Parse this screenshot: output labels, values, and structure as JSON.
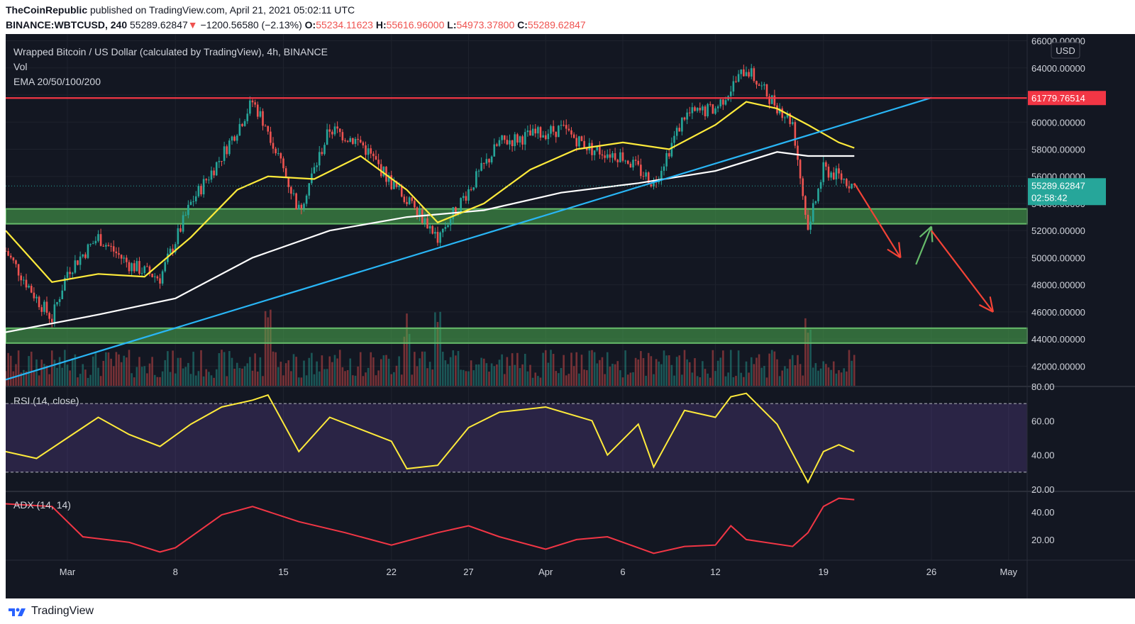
{
  "header": {
    "publisher": "TheCoinRepublic",
    "published_text": "published on TradingView.com, April 21, 2021 05:02:11 UTC",
    "symbol": "BINANCE:WBTCUSD, 240",
    "last_price": "55289.62847",
    "change_arrow": "▼",
    "change": "−1200.56580 (−2.13%)",
    "o_label": "O:",
    "o_value": "55234.11623",
    "h_label": "H:",
    "h_value": "55616.96000",
    "l_label": "L:",
    "l_value": "54973.37800",
    "c_label": "C:",
    "c_value": "55289.62847"
  },
  "legend": {
    "title": "Wrapped Bitcoin / US Dollar (calculated by TradingView), 4h, BINANCE",
    "vol": "Vol",
    "ema": "EMA 20/50/100/200",
    "rsi": "RSI (14, close)",
    "adx": "ADX (14, 14)"
  },
  "price_axis": {
    "currency": "USD",
    "ticks": [
      "66000.00000",
      "64000.00000",
      "62000.00000",
      "60000.00000",
      "58000.00000",
      "56000.00000",
      "54000.00000",
      "52000.00000",
      "50000.00000",
      "48000.00000",
      "46000.00000",
      "44000.00000",
      "42000.00000"
    ],
    "resistance_label": "61779.76514",
    "current_label": "55289.62847",
    "countdown": "02:58:42"
  },
  "rsi_axis": {
    "ticks": [
      "80.00",
      "60.00",
      "40.00",
      "20.00"
    ]
  },
  "adx_axis": {
    "ticks": [
      "40.00",
      "20.00"
    ]
  },
  "time_axis": {
    "labels": [
      "Mar",
      "8",
      "15",
      "22",
      "27",
      "Apr",
      "6",
      "12",
      "19",
      "26",
      "May"
    ]
  },
  "footer": {
    "brand": "TradingView"
  },
  "colors": {
    "background": "#131722",
    "up": "#26a69a",
    "down": "#ef5350",
    "ema_yellow": "#ffeb3b",
    "ema_white": "#ffffff",
    "trendline": "#29b6f6",
    "resistance": "#f23645",
    "support_zone": "#4caf50",
    "rsi_line": "#ffeb3b",
    "rsi_band": "#7e57c2",
    "adx_line": "#f23645"
  },
  "chart_data": [
    {
      "type": "candlestick",
      "title": "Wrapped Bitcoin / US Dollar (calculated by TradingView), 4h, BINANCE",
      "x_range": [
        "2021-02-25",
        "2021-05-02"
      ],
      "ylim": [
        40500,
        66500
      ],
      "close_path": {
        "x": [
          "2021-02-25",
          "2021-02-27",
          "2021-02-28",
          "2021-03-01",
          "2021-03-03",
          "2021-03-05",
          "2021-03-07",
          "2021-03-09",
          "2021-03-11",
          "2021-03-13",
          "2021-03-14",
          "2021-03-16",
          "2021-03-18",
          "2021-03-20",
          "2021-03-22",
          "2021-03-24",
          "2021-03-25",
          "2021-03-27",
          "2021-03-29",
          "2021-03-31",
          "2021-04-02",
          "2021-04-04",
          "2021-04-06",
          "2021-04-08",
          "2021-04-10",
          "2021-04-12",
          "2021-04-14",
          "2021-04-15",
          "2021-04-16",
          "2021-04-17",
          "2021-04-18",
          "2021-04-19",
          "2021-04-20",
          "2021-04-21"
        ],
        "y": [
          50500,
          47000,
          45500,
          49000,
          51500,
          49500,
          48500,
          54000,
          57500,
          61500,
          59500,
          53500,
          59500,
          58500,
          55500,
          53000,
          51500,
          55000,
          58500,
          59000,
          59500,
          58000,
          57500,
          55500,
          60500,
          61000,
          64000,
          62500,
          61200,
          60000,
          52000,
          56500,
          56000,
          55290
        ]
      },
      "horizontal_levels": [
        {
          "label": "61779.76514",
          "value": 61779.76514
        },
        {
          "value_range": [
            52500,
            53600
          ]
        },
        {
          "value_range": [
            43700,
            44800
          ]
        }
      ],
      "trendline": {
        "from": [
          "2021-02-25",
          41000
        ],
        "to": [
          "2021-04-26",
          61800
        ]
      },
      "ema_fast": {
        "x": [
          "2021-02-25",
          "2021-02-28",
          "2021-03-03",
          "2021-03-06",
          "2021-03-09",
          "2021-03-12",
          "2021-03-14",
          "2021-03-17",
          "2021-03-20",
          "2021-03-23",
          "2021-03-25",
          "2021-03-28",
          "2021-03-31",
          "2021-04-03",
          "2021-04-06",
          "2021-04-09",
          "2021-04-12",
          "2021-04-14",
          "2021-04-16",
          "2021-04-18",
          "2021-04-20",
          "2021-04-21"
        ],
        "y": [
          52000,
          48200,
          48800,
          48600,
          51500,
          55000,
          56000,
          55800,
          57500,
          55000,
          52600,
          54000,
          56500,
          58000,
          58500,
          58000,
          59800,
          61500,
          61000,
          59800,
          58500,
          58100
        ]
      },
      "ema_slow": {
        "x": [
          "2021-02-25",
          "2021-03-03",
          "2021-03-08",
          "2021-03-13",
          "2021-03-18",
          "2021-03-23",
          "2021-03-28",
          "2021-04-02",
          "2021-04-07",
          "2021-04-12",
          "2021-04-16",
          "2021-04-18",
          "2021-04-21"
        ],
        "y": [
          44500,
          45800,
          47000,
          50000,
          52000,
          53000,
          53500,
          54800,
          55500,
          56400,
          57800,
          57500,
          57500
        ]
      },
      "projection_arrows": [
        {
          "color": "red",
          "from": [
            "2021-04-21",
            55500
          ],
          "to": [
            "2021-04-24",
            50000
          ]
        },
        {
          "color": "green",
          "from": [
            "2021-04-25",
            49500
          ],
          "to": [
            "2021-04-26",
            52300
          ]
        },
        {
          "color": "red",
          "from": [
            "2021-04-26",
            52000
          ],
          "to": [
            "2021-04-30",
            46000
          ]
        }
      ],
      "volume_spikes": [
        "2021-03-14",
        "2021-03-23",
        "2021-03-25",
        "2021-04-18"
      ]
    },
    {
      "type": "line",
      "title": "RSI (14, close)",
      "ylim": [
        20,
        80
      ],
      "bands": [
        30,
        70
      ],
      "x": [
        "2021-02-25",
        "2021-02-27",
        "2021-03-01",
        "2021-03-03",
        "2021-03-05",
        "2021-03-07",
        "2021-03-09",
        "2021-03-11",
        "2021-03-13",
        "2021-03-14",
        "2021-03-16",
        "2021-03-18",
        "2021-03-20",
        "2021-03-22",
        "2021-03-23",
        "2021-03-25",
        "2021-03-27",
        "2021-03-29",
        "2021-04-01",
        "2021-04-04",
        "2021-04-05",
        "2021-04-07",
        "2021-04-08",
        "2021-04-10",
        "2021-04-12",
        "2021-04-13",
        "2021-04-14",
        "2021-04-16",
        "2021-04-18",
        "2021-04-19",
        "2021-04-20",
        "2021-04-21"
      ],
      "y": [
        42,
        38,
        50,
        62,
        52,
        45,
        58,
        68,
        72,
        75,
        42,
        62,
        55,
        48,
        32,
        34,
        56,
        65,
        68,
        60,
        40,
        58,
        33,
        66,
        62,
        74,
        76,
        58,
        24,
        42,
        46,
        42
      ]
    },
    {
      "type": "line",
      "title": "ADX (14, 14)",
      "ylim": [
        5,
        55
      ],
      "x": [
        "2021-02-25",
        "2021-02-28",
        "2021-03-02",
        "2021-03-05",
        "2021-03-07",
        "2021-03-08",
        "2021-03-11",
        "2021-03-13",
        "2021-03-16",
        "2021-03-19",
        "2021-03-22",
        "2021-03-25",
        "2021-03-27",
        "2021-03-29",
        "2021-04-01",
        "2021-04-03",
        "2021-04-05",
        "2021-04-08",
        "2021-04-10",
        "2021-04-12",
        "2021-04-13",
        "2021-04-14",
        "2021-04-17",
        "2021-04-18",
        "2021-04-19",
        "2021-04-20",
        "2021-04-21"
      ],
      "y": [
        46,
        44,
        22,
        18,
        11,
        14,
        38,
        44,
        33,
        25,
        16,
        25,
        30,
        22,
        13,
        20,
        22,
        10,
        15,
        16,
        30,
        20,
        15,
        25,
        44,
        50,
        49
      ]
    }
  ]
}
